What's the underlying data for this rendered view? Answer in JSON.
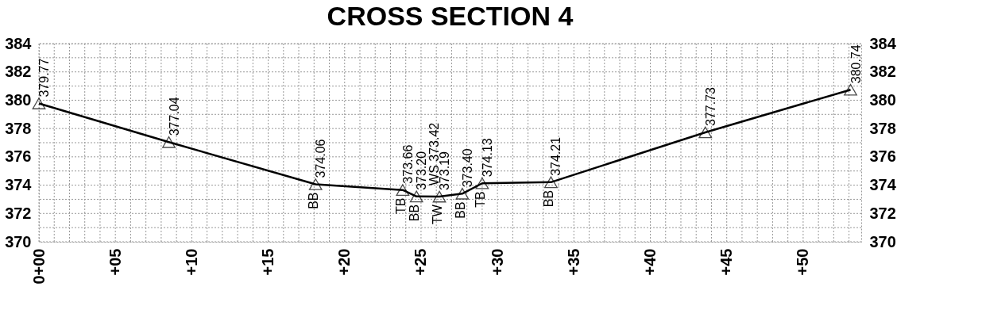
{
  "chart_data": {
    "type": "line",
    "title": "CROSS SECTION 4",
    "x": [
      0,
      8.5,
      18.1,
      23.8,
      24.7,
      26.2,
      27.7,
      29.0,
      33.5,
      43.6,
      53.1
    ],
    "values": [
      379.77,
      377.04,
      374.06,
      373.66,
      373.2,
      373.19,
      373.4,
      374.13,
      374.21,
      377.73,
      380.74
    ],
    "value_labels": [
      "379.77",
      "377.04",
      "374.06",
      "373.66",
      "373.20",
      "373.19",
      "373.40",
      "374.13",
      "374.21",
      "377.73",
      "380.74"
    ],
    "color": "#000000",
    "marker": "triangle",
    "line_style": "solid",
    "grid": true,
    "annotations": [
      {
        "text": "BB",
        "x": 18.1,
        "y": 374.06
      },
      {
        "text": "TB",
        "x": 23.8,
        "y": 373.66
      },
      {
        "text": "BB",
        "x": 24.7,
        "y": 373.2
      },
      {
        "text": "TW",
        "x": 26.2,
        "y": 373.19
      },
      {
        "text": "BB",
        "x": 27.7,
        "y": 373.4
      },
      {
        "text": "TB",
        "x": 29.0,
        "y": 374.13
      },
      {
        "text": "BB",
        "x": 33.5,
        "y": 374.21
      },
      {
        "text": "WS 373.42",
        "x": 25.6,
        "y": 373.42
      }
    ],
    "xlim": [
      0,
      53.8
    ],
    "xticks": [
      {
        "value": 0,
        "label": "0+00"
      },
      {
        "value": 5,
        "label": "+05"
      },
      {
        "value": 10,
        "label": "+10"
      },
      {
        "value": 15,
        "label": "+15"
      },
      {
        "value": 20,
        "label": "+20"
      },
      {
        "value": 25,
        "label": "+25"
      },
      {
        "value": 30,
        "label": "+30"
      },
      {
        "value": 35,
        "label": "+35"
      },
      {
        "value": 40,
        "label": "+40"
      },
      {
        "value": 45,
        "label": "+45"
      },
      {
        "value": 50,
        "label": "+50"
      }
    ],
    "ylim": [
      370,
      384
    ],
    "yticks": [
      370,
      372,
      374,
      376,
      378,
      380,
      382,
      384
    ],
    "y2lim": [
      370,
      384
    ],
    "y2ticks": [
      370,
      372,
      374,
      376,
      378,
      380,
      382,
      384
    ]
  }
}
